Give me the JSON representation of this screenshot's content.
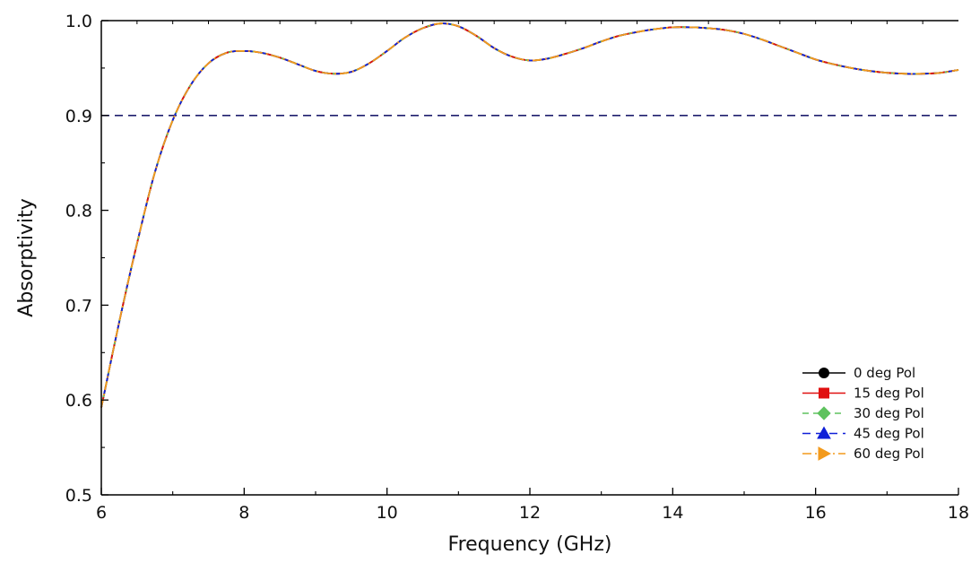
{
  "chart_data": {
    "type": "line",
    "title": "",
    "xlabel": "Frequency (GHz)",
    "ylabel": "Absorptivity",
    "xlim": [
      6,
      18
    ],
    "ylim": [
      0.5,
      1.0
    ],
    "x_ticks": [
      "6",
      "8",
      "10",
      "12",
      "14",
      "16",
      "18"
    ],
    "y_ticks": [
      "0.5",
      "0.6",
      "0.7",
      "0.8",
      "0.9",
      "1.0"
    ],
    "grid": false,
    "legend_position": "bottom-right",
    "reference_line": {
      "y": 0.9,
      "style": "dashed",
      "color": "#1f1f6e"
    },
    "x": [
      6.0,
      6.25,
      6.5,
      6.75,
      7.0,
      7.25,
      7.5,
      7.75,
      8.0,
      8.25,
      8.5,
      8.75,
      9.0,
      9.25,
      9.5,
      9.75,
      10.0,
      10.25,
      10.5,
      10.75,
      11.0,
      11.25,
      11.5,
      11.75,
      12.0,
      12.25,
      12.5,
      12.75,
      13.0,
      13.25,
      13.5,
      13.75,
      14.0,
      14.25,
      14.5,
      14.75,
      15.0,
      15.25,
      15.5,
      15.75,
      16.0,
      16.25,
      16.5,
      16.75,
      17.0,
      17.25,
      17.5,
      17.75,
      18.0
    ],
    "series": [
      {
        "name": "0 deg Pol",
        "color": "#000000",
        "dash": "",
        "marker": "circle",
        "values": [
          0.592,
          0.682,
          0.765,
          0.84,
          0.895,
          0.932,
          0.955,
          0.966,
          0.968,
          0.966,
          0.961,
          0.954,
          0.947,
          0.944,
          0.946,
          0.955,
          0.968,
          0.982,
          0.992,
          0.997,
          0.994,
          0.984,
          0.971,
          0.962,
          0.958,
          0.96,
          0.965,
          0.971,
          0.978,
          0.984,
          0.988,
          0.991,
          0.993,
          0.993,
          0.992,
          0.99,
          0.986,
          0.98,
          0.973,
          0.966,
          0.959,
          0.954,
          0.95,
          0.947,
          0.945,
          0.944,
          0.944,
          0.945,
          0.948
        ]
      },
      {
        "name": "15 deg Pol",
        "color": "#e01010",
        "dash": "",
        "marker": "square",
        "values": [
          0.592,
          0.682,
          0.765,
          0.84,
          0.895,
          0.932,
          0.955,
          0.966,
          0.968,
          0.966,
          0.961,
          0.954,
          0.947,
          0.944,
          0.946,
          0.955,
          0.968,
          0.982,
          0.992,
          0.997,
          0.994,
          0.984,
          0.971,
          0.962,
          0.958,
          0.96,
          0.965,
          0.971,
          0.978,
          0.984,
          0.988,
          0.991,
          0.993,
          0.993,
          0.992,
          0.99,
          0.986,
          0.98,
          0.973,
          0.966,
          0.959,
          0.954,
          0.95,
          0.947,
          0.945,
          0.944,
          0.944,
          0.945,
          0.948
        ]
      },
      {
        "name": "30 deg Pol",
        "color": "#5ec25e",
        "dash": "7 5",
        "marker": "diamond",
        "values": [
          0.592,
          0.682,
          0.765,
          0.84,
          0.895,
          0.932,
          0.955,
          0.966,
          0.968,
          0.966,
          0.961,
          0.954,
          0.947,
          0.944,
          0.946,
          0.955,
          0.968,
          0.982,
          0.992,
          0.997,
          0.994,
          0.984,
          0.971,
          0.962,
          0.958,
          0.96,
          0.965,
          0.971,
          0.978,
          0.984,
          0.988,
          0.991,
          0.993,
          0.993,
          0.992,
          0.99,
          0.986,
          0.98,
          0.973,
          0.966,
          0.959,
          0.954,
          0.95,
          0.947,
          0.945,
          0.944,
          0.944,
          0.945,
          0.948
        ]
      },
      {
        "name": "45 deg Pol",
        "color": "#1020d8",
        "dash": "9 6",
        "marker": "triangle-up",
        "values": [
          0.592,
          0.682,
          0.765,
          0.84,
          0.895,
          0.932,
          0.955,
          0.966,
          0.968,
          0.966,
          0.961,
          0.954,
          0.947,
          0.944,
          0.946,
          0.955,
          0.968,
          0.982,
          0.992,
          0.997,
          0.994,
          0.984,
          0.971,
          0.962,
          0.958,
          0.96,
          0.965,
          0.971,
          0.978,
          0.984,
          0.988,
          0.991,
          0.993,
          0.993,
          0.992,
          0.99,
          0.986,
          0.98,
          0.973,
          0.966,
          0.959,
          0.954,
          0.95,
          0.947,
          0.945,
          0.944,
          0.944,
          0.945,
          0.948
        ]
      },
      {
        "name": "60 deg Pol",
        "color": "#f39a1c",
        "dash": "10 4 2 4",
        "marker": "triangle-right",
        "values": [
          0.592,
          0.682,
          0.765,
          0.84,
          0.895,
          0.932,
          0.955,
          0.966,
          0.968,
          0.966,
          0.961,
          0.954,
          0.947,
          0.944,
          0.946,
          0.955,
          0.968,
          0.982,
          0.992,
          0.997,
          0.994,
          0.984,
          0.971,
          0.962,
          0.958,
          0.96,
          0.965,
          0.971,
          0.978,
          0.984,
          0.988,
          0.991,
          0.993,
          0.993,
          0.992,
          0.99,
          0.986,
          0.98,
          0.973,
          0.966,
          0.959,
          0.954,
          0.95,
          0.947,
          0.945,
          0.944,
          0.944,
          0.945,
          0.948
        ]
      }
    ]
  }
}
